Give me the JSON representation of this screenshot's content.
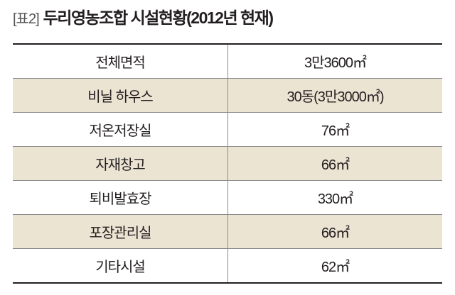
{
  "header": {
    "label": "[표2]",
    "title": "두리영농조합 시설현황(2012년 현재)"
  },
  "table": {
    "rows": [
      [
        "전체면적",
        "3만3600㎡"
      ],
      [
        "비닐 하우스",
        "30동(3만3000㎡)"
      ],
      [
        "저온저장실",
        "76㎡"
      ],
      [
        "자재창고",
        "66㎡"
      ],
      [
        "퇴비발효장",
        "330㎡"
      ],
      [
        "포장관리실",
        "66㎡"
      ],
      [
        "기타시설",
        "62㎡"
      ]
    ]
  }
}
